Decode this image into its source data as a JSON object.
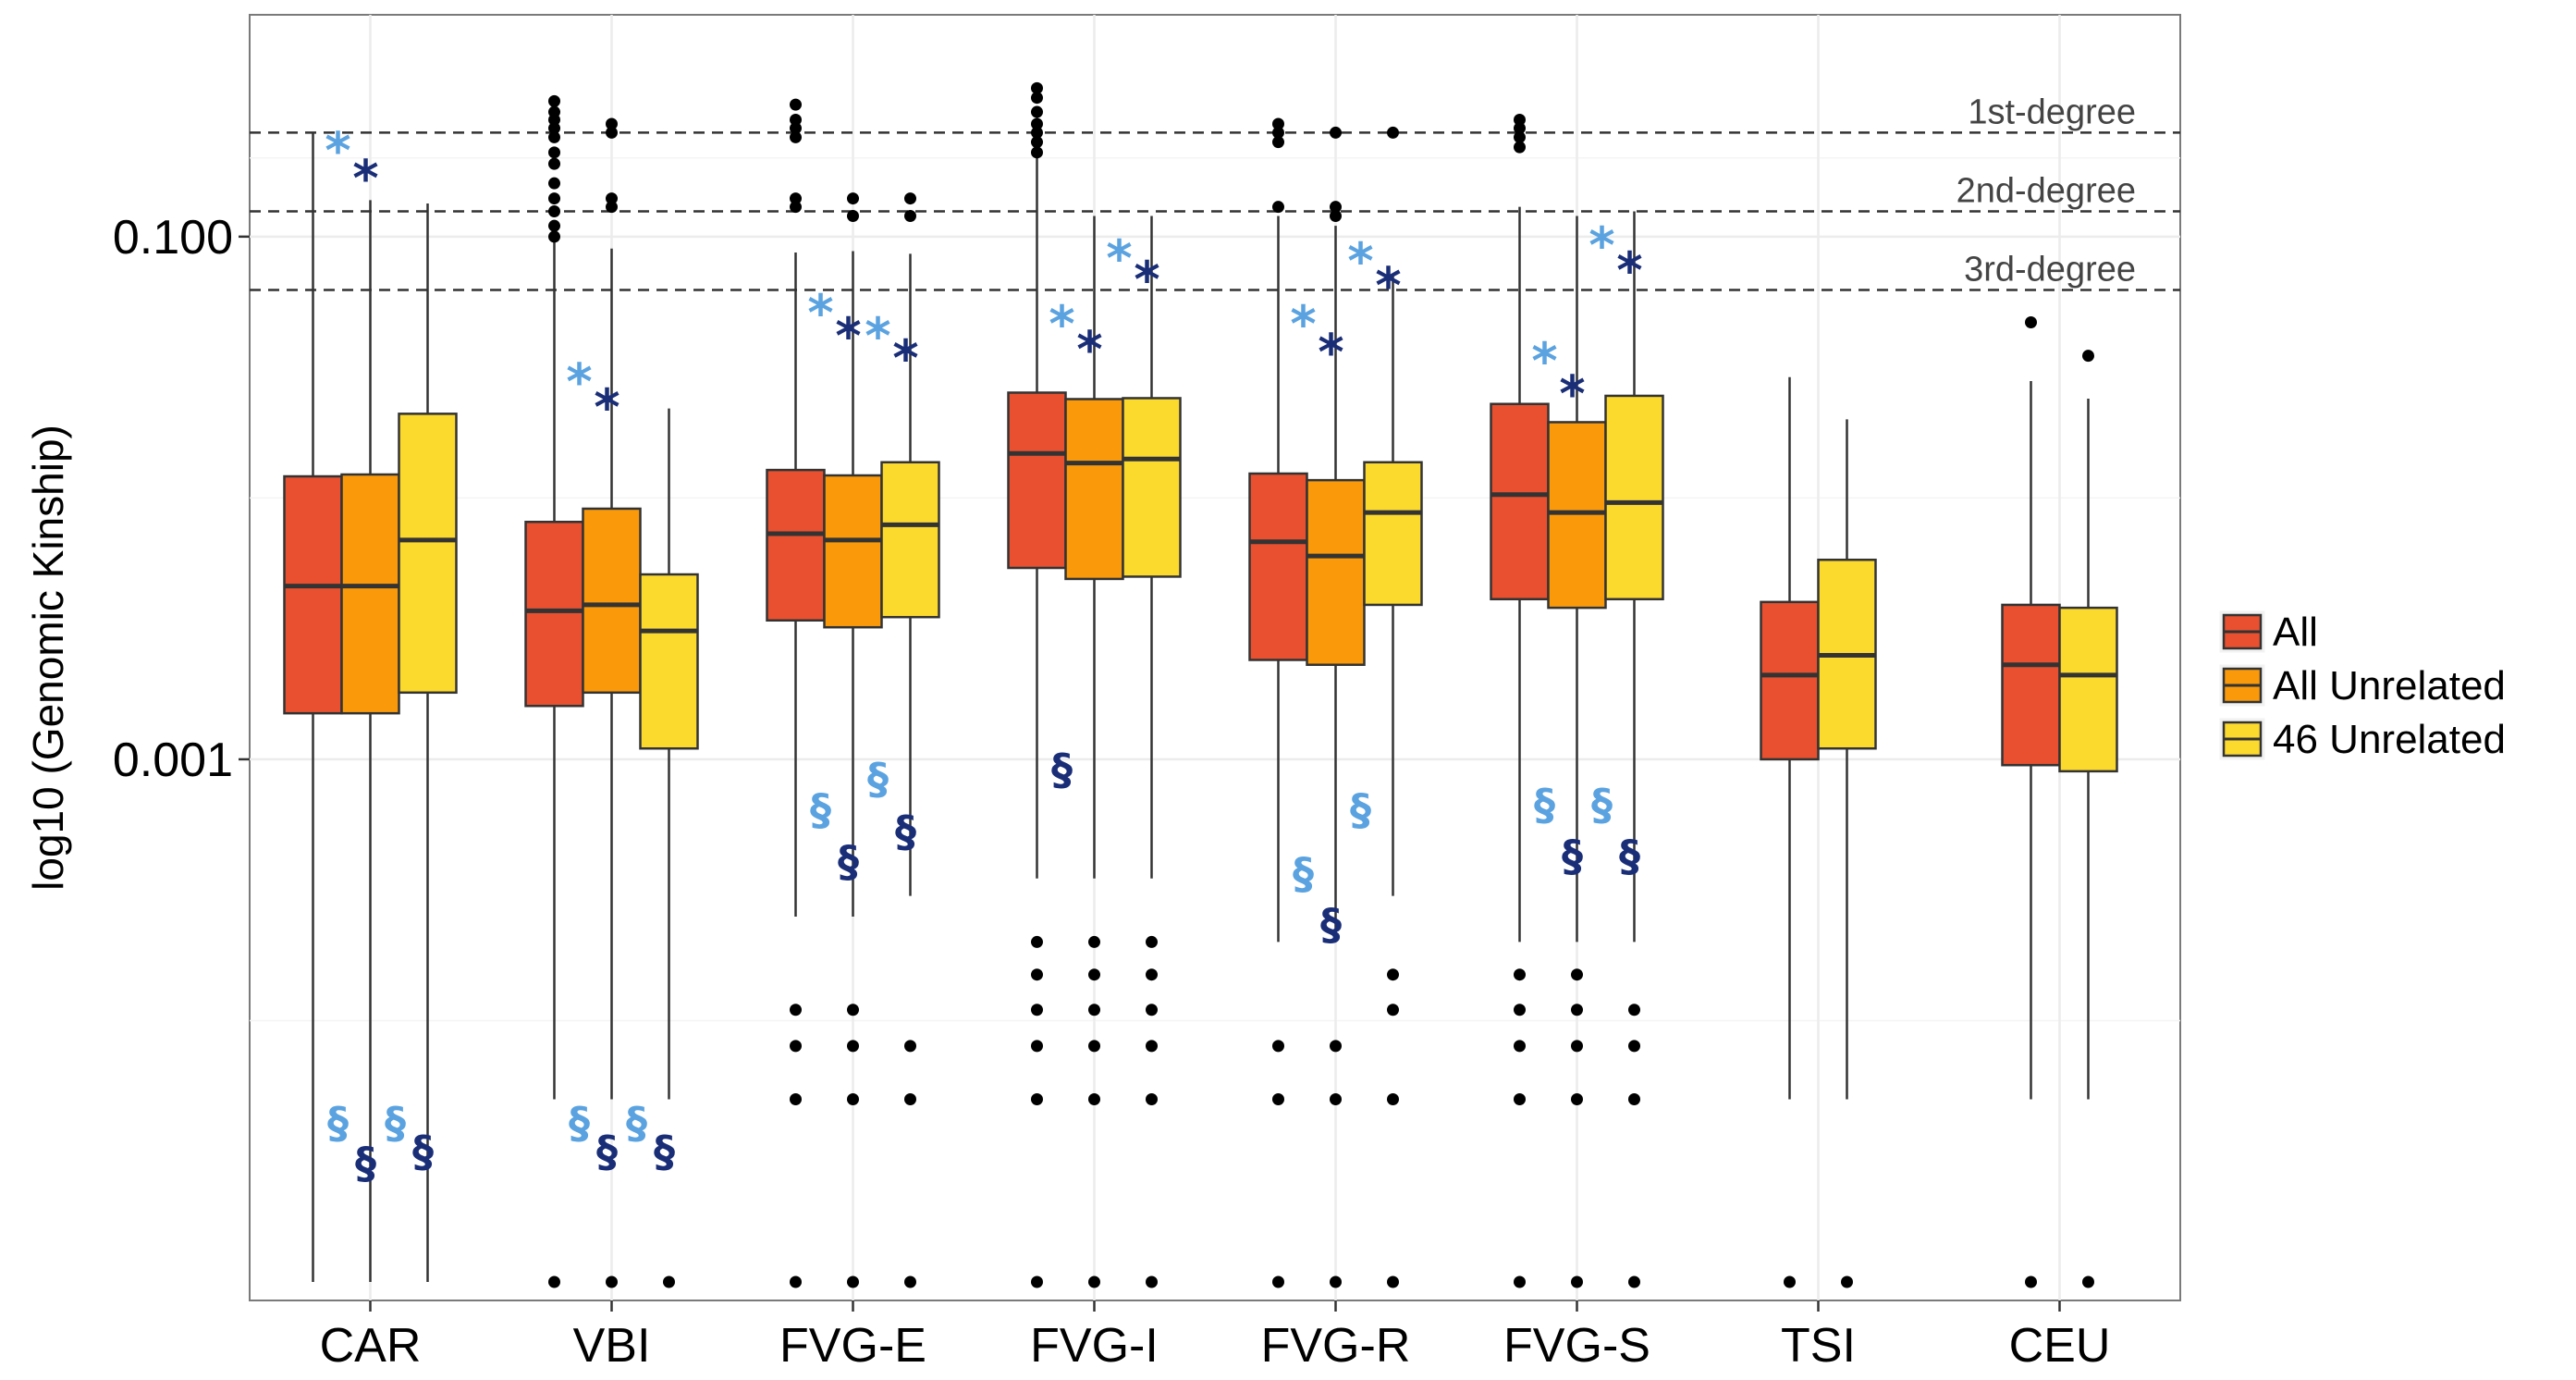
{
  "chart_data": {
    "type": "box",
    "ylabel": "log10 (Genomic Kinship)",
    "y_scale": "log10",
    "ylim": [
      1e-05,
      0.6
    ],
    "y_ticks": [
      {
        "value": 0.1,
        "label": "0.100"
      },
      {
        "value": 0.001,
        "label": "0.001"
      }
    ],
    "grid": true,
    "legend_position": "right",
    "colors": {
      "All": "#E8502F",
      "All Unrelated": "#FA9A0A",
      "46 Unrelated": "#FCD92D",
      "star_light": "#5BA3E0",
      "star_dark": "#1A2E78"
    },
    "series": [
      {
        "name": "All",
        "color": "#E8502F"
      },
      {
        "name": "All Unrelated",
        "color": "#FA9A0A"
      },
      {
        "name": "46 Unrelated",
        "color": "#FCD92D"
      }
    ],
    "reference_lines": [
      {
        "label": "1st-degree",
        "value": 0.25
      },
      {
        "label": "2nd-degree",
        "value": 0.125
      },
      {
        "label": "3rd-degree",
        "value": 0.0625
      }
    ],
    "categories": [
      {
        "name": "CAR",
        "boxes": [
          {
            "series": "All",
            "whisker_low": 1e-05,
            "q1": 0.0015,
            "median": 0.0046,
            "q3": 0.0121,
            "whisker_high": 0.25,
            "outliers": []
          },
          {
            "series": "All Unrelated",
            "whisker_low": 1e-05,
            "q1": 0.0015,
            "median": 0.0046,
            "q3": 0.0123,
            "whisker_high": 0.138,
            "outliers": []
          },
          {
            "series": "46 Unrelated",
            "whisker_low": 1e-05,
            "q1": 0.0018,
            "median": 0.0069,
            "q3": 0.021,
            "whisker_high": 0.134,
            "outliers": []
          }
        ]
      },
      {
        "name": "VBI",
        "boxes": [
          {
            "series": "All",
            "whisker_low": 5e-05,
            "q1": 0.0016,
            "median": 0.0037,
            "q3": 0.0081,
            "whisker_high": 0.098,
            "outliers": [
              1e-05,
              0.1,
              0.11,
              0.125,
              0.14,
              0.16,
              0.19,
              0.21,
              0.24,
              0.26,
              0.28,
              0.3,
              0.33
            ]
          },
          {
            "series": "All Unrelated",
            "whisker_low": 5e-05,
            "q1": 0.0018,
            "median": 0.0039,
            "q3": 0.0091,
            "whisker_high": 0.09,
            "outliers": [
              1e-05,
              0.13,
              0.14,
              0.25,
              0.27
            ]
          },
          {
            "series": "46 Unrelated",
            "whisker_low": 5e-05,
            "q1": 0.0011,
            "median": 0.0031,
            "q3": 0.0051,
            "whisker_high": 0.022,
            "outliers": [
              1e-05
            ]
          }
        ]
      },
      {
        "name": "FVG-E",
        "boxes": [
          {
            "series": "All",
            "whisker_low": 0.00025,
            "q1": 0.0034,
            "median": 0.0073,
            "q3": 0.0128,
            "whisker_high": 0.087,
            "outliers": [
              1e-05,
              5e-05,
              8e-05,
              0.00011,
              0.13,
              0.14,
              0.24,
              0.26,
              0.28,
              0.32
            ]
          },
          {
            "series": "All Unrelated",
            "whisker_low": 0.00025,
            "q1": 0.0032,
            "median": 0.0069,
            "q3": 0.0122,
            "whisker_high": 0.088,
            "outliers": [
              1e-05,
              5e-05,
              8e-05,
              0.00011,
              0.12,
              0.14
            ]
          },
          {
            "series": "46 Unrelated",
            "whisker_low": 0.0003,
            "q1": 0.0035,
            "median": 0.0079,
            "q3": 0.0137,
            "whisker_high": 0.086,
            "outliers": [
              1e-05,
              5e-05,
              8e-05,
              0.12,
              0.14
            ]
          }
        ]
      },
      {
        "name": "FVG-I",
        "boxes": [
          {
            "series": "All",
            "whisker_low": 0.00035,
            "q1": 0.0054,
            "median": 0.0148,
            "q3": 0.0253,
            "whisker_high": 0.2,
            "outliers": [
              1e-05,
              5e-05,
              8e-05,
              0.00011,
              0.00015,
              0.0002,
              0.21,
              0.23,
              0.25,
              0.27,
              0.3,
              0.34,
              0.37
            ]
          },
          {
            "series": "All Unrelated",
            "whisker_low": 0.00035,
            "q1": 0.0049,
            "median": 0.0136,
            "q3": 0.0239,
            "whisker_high": 0.12,
            "outliers": [
              1e-05,
              5e-05,
              8e-05,
              0.00011,
              0.00015,
              0.0002
            ]
          },
          {
            "series": "46 Unrelated",
            "whisker_low": 0.00035,
            "q1": 0.005,
            "median": 0.0141,
            "q3": 0.0241,
            "whisker_high": 0.12,
            "outliers": [
              1e-05,
              5e-05,
              8e-05,
              0.00011,
              0.00015,
              0.0002
            ]
          }
        ]
      },
      {
        "name": "FVG-R",
        "boxes": [
          {
            "series": "All",
            "whisker_low": 0.0002,
            "q1": 0.0024,
            "median": 0.0068,
            "q3": 0.0124,
            "whisker_high": 0.12,
            "outliers": [
              1e-05,
              5e-05,
              8e-05,
              0.13,
              0.23,
              0.25,
              0.27
            ]
          },
          {
            "series": "All Unrelated",
            "whisker_low": 0.0002,
            "q1": 0.0023,
            "median": 0.006,
            "q3": 0.0117,
            "whisker_high": 0.11,
            "outliers": [
              1e-05,
              5e-05,
              8e-05,
              0.12,
              0.13,
              0.25
            ]
          },
          {
            "series": "46 Unrelated",
            "whisker_low": 0.0003,
            "q1": 0.0039,
            "median": 0.0088,
            "q3": 0.0137,
            "whisker_high": 0.071,
            "outliers": [
              1e-05,
              5e-05,
              0.00011,
              0.00015,
              0.25
            ]
          }
        ]
      },
      {
        "name": "FVG-S",
        "boxes": [
          {
            "series": "All",
            "whisker_low": 0.0002,
            "q1": 0.0041,
            "median": 0.0103,
            "q3": 0.0229,
            "whisker_high": 0.13,
            "outliers": [
              1e-05,
              5e-05,
              8e-05,
              0.00011,
              0.00015,
              0.22,
              0.24,
              0.26,
              0.28
            ]
          },
          {
            "series": "All Unrelated",
            "whisker_low": 0.0002,
            "q1": 0.0038,
            "median": 0.0088,
            "q3": 0.0195,
            "whisker_high": 0.12,
            "outliers": [
              1e-05,
              5e-05,
              8e-05,
              0.00011,
              0.00015
            ]
          },
          {
            "series": "46 Unrelated",
            "whisker_low": 0.0002,
            "q1": 0.0041,
            "median": 0.0096,
            "q3": 0.0246,
            "whisker_high": 0.125,
            "outliers": [
              1e-05,
              5e-05,
              8e-05,
              0.00011
            ]
          }
        ]
      },
      {
        "name": "TSI",
        "boxes": [
          {
            "series": "All",
            "whisker_low": 5e-05,
            "q1": 0.001,
            "median": 0.0021,
            "q3": 0.004,
            "whisker_high": 0.029,
            "outliers": [
              1e-05
            ]
          },
          {
            "series": "46 Unrelated",
            "whisker_low": 5e-05,
            "q1": 0.0011,
            "median": 0.0025,
            "q3": 0.0058,
            "whisker_high": 0.02,
            "outliers": [
              1e-05
            ]
          }
        ]
      },
      {
        "name": "CEU",
        "boxes": [
          {
            "series": "All",
            "whisker_low": 5e-05,
            "q1": 0.00095,
            "median": 0.0023,
            "q3": 0.0039,
            "whisker_high": 0.028,
            "outliers": [
              1e-05,
              0.047
            ]
          },
          {
            "series": "46 Unrelated",
            "whisker_low": 5e-05,
            "q1": 0.0009,
            "median": 0.0021,
            "q3": 0.0038,
            "whisker_high": 0.024,
            "outliers": [
              1e-05,
              0.035
            ]
          }
        ]
      }
    ],
    "annotations": [
      {
        "symbol": "*",
        "category": "CAR",
        "shade": "light",
        "y": 0.23
      },
      {
        "symbol": "*",
        "category": "CAR",
        "shade": "dark",
        "y": 0.18
      },
      {
        "symbol": "§",
        "category": "CAR",
        "shade": "light",
        "y": 4e-05
      },
      {
        "symbol": "§",
        "category": "CAR",
        "shade": "dark",
        "y": 2.8e-05
      },
      {
        "symbol": "§",
        "category": "CAR",
        "shade": "light",
        "y": 4e-05
      },
      {
        "symbol": "§",
        "category": "CAR",
        "shade": "dark",
        "y": 3.1e-05
      },
      {
        "symbol": "*",
        "category": "VBI",
        "shade": "light",
        "y": 0.03
      },
      {
        "symbol": "*",
        "category": "VBI",
        "shade": "dark",
        "y": 0.024
      },
      {
        "symbol": "§",
        "category": "VBI",
        "shade": "light",
        "y": 4e-05
      },
      {
        "symbol": "§",
        "category": "VBI",
        "shade": "dark",
        "y": 3.1e-05
      },
      {
        "symbol": "§",
        "category": "VBI",
        "shade": "light",
        "y": 4e-05
      },
      {
        "symbol": "§",
        "category": "VBI",
        "shade": "dark",
        "y": 3.1e-05
      },
      {
        "symbol": "*",
        "category": "FVG-E",
        "shade": "light",
        "y": 0.055
      },
      {
        "symbol": "*",
        "category": "FVG-E",
        "shade": "dark",
        "y": 0.045
      },
      {
        "symbol": "*",
        "category": "FVG-E",
        "shade": "light",
        "y": 0.045
      },
      {
        "symbol": "*",
        "category": "FVG-E",
        "shade": "dark",
        "y": 0.037
      },
      {
        "symbol": "§",
        "category": "FVG-E",
        "shade": "light",
        "y": 0.00063
      },
      {
        "symbol": "§",
        "category": "FVG-E",
        "shade": "dark",
        "y": 0.0004
      },
      {
        "symbol": "§",
        "category": "FVG-E",
        "shade": "light",
        "y": 0.00083
      },
      {
        "symbol": "§",
        "category": "FVG-E",
        "shade": "dark",
        "y": 0.00052
      },
      {
        "symbol": "*",
        "category": "FVG-I",
        "shade": "light",
        "y": 0.05
      },
      {
        "symbol": "*",
        "category": "FVG-I",
        "shade": "dark",
        "y": 0.04
      },
      {
        "symbol": "*",
        "category": "FVG-I",
        "shade": "light",
        "y": 0.089
      },
      {
        "symbol": "*",
        "category": "FVG-I",
        "shade": "dark",
        "y": 0.074
      },
      {
        "symbol": "§",
        "category": "FVG-I",
        "shade": "dark",
        "y": 0.0009
      },
      {
        "symbol": "*",
        "category": "FVG-R",
        "shade": "light",
        "y": 0.05
      },
      {
        "symbol": "*",
        "category": "FVG-R",
        "shade": "dark",
        "y": 0.039
      },
      {
        "symbol": "*",
        "category": "FVG-R",
        "shade": "light",
        "y": 0.087
      },
      {
        "symbol": "*",
        "category": "FVG-R",
        "shade": "dark",
        "y": 0.07
      },
      {
        "symbol": "§",
        "category": "FVG-R",
        "shade": "light",
        "y": 0.00036
      },
      {
        "symbol": "§",
        "category": "FVG-R",
        "shade": "dark",
        "y": 0.00023
      },
      {
        "symbol": "§",
        "category": "FVG-R",
        "shade": "light",
        "y": 0.00063
      },
      {
        "symbol": "*",
        "category": "FVG-S",
        "shade": "light",
        "y": 0.036
      },
      {
        "symbol": "*",
        "category": "FVG-S",
        "shade": "dark",
        "y": 0.027
      },
      {
        "symbol": "*",
        "category": "FVG-S",
        "shade": "light",
        "y": 0.1
      },
      {
        "symbol": "*",
        "category": "FVG-S",
        "shade": "dark",
        "y": 0.08
      },
      {
        "symbol": "§",
        "category": "FVG-S",
        "shade": "light",
        "y": 0.00066
      },
      {
        "symbol": "§",
        "category": "FVG-S",
        "shade": "dark",
        "y": 0.00042
      },
      {
        "symbol": "§",
        "category": "FVG-S",
        "shade": "light",
        "y": 0.00066
      },
      {
        "symbol": "§",
        "category": "FVG-S",
        "shade": "dark",
        "y": 0.00042
      }
    ]
  }
}
